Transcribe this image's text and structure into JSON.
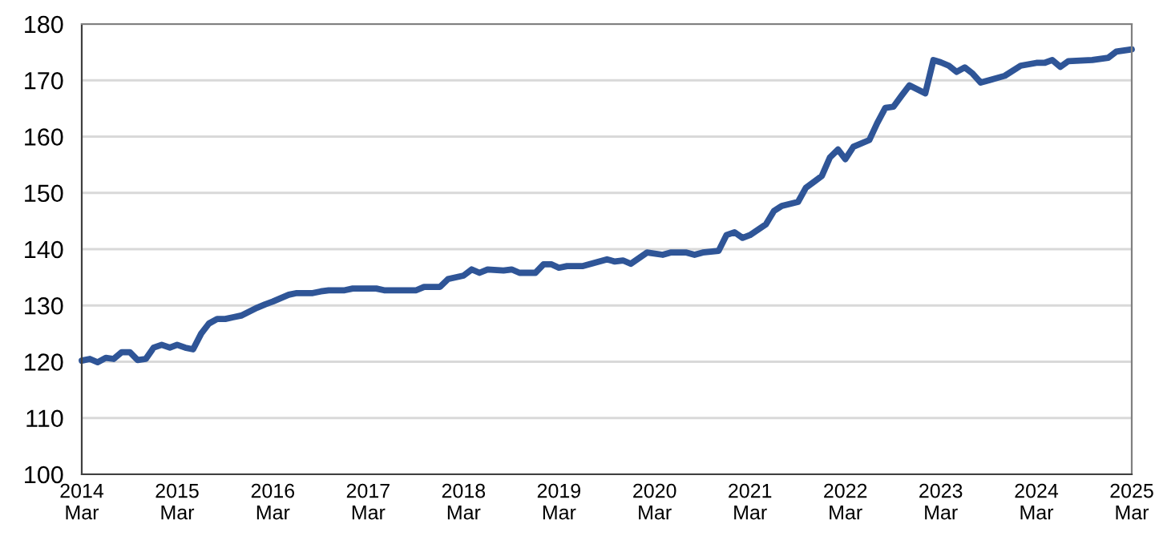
{
  "chart_data": {
    "type": "line",
    "line_style": "solid",
    "marker": "none",
    "grid": "y",
    "xlim": [
      "2014-03",
      "2025-03"
    ],
    "ylim": [
      100,
      180
    ],
    "yticks": [
      100,
      110,
      120,
      130,
      140,
      150,
      160,
      170,
      180
    ],
    "xticks": [
      {
        "value": "2014-03",
        "label": "2014\nMar"
      },
      {
        "value": "2015-03",
        "label": "2015\nMar"
      },
      {
        "value": "2016-03",
        "label": "2016\nMar"
      },
      {
        "value": "2017-03",
        "label": "2017\nMar"
      },
      {
        "value": "2018-03",
        "label": "2018\nMar"
      },
      {
        "value": "2019-03",
        "label": "2019\nMar"
      },
      {
        "value": "2020-03",
        "label": "2020\nMar"
      },
      {
        "value": "2021-03",
        "label": "2021\nMar"
      },
      {
        "value": "2022-03",
        "label": "2022\nMar"
      },
      {
        "value": "2023-03",
        "label": "2023\nMar"
      },
      {
        "value": "2024-03",
        "label": "2024\nMar"
      },
      {
        "value": "2025-03",
        "label": "2025\nMar"
      }
    ],
    "x": [
      "2014-03",
      "2014-04",
      "2014-05",
      "2014-06",
      "2014-07",
      "2014-08",
      "2014-09",
      "2014-10",
      "2014-11",
      "2014-12",
      "2015-01",
      "2015-02",
      "2015-03",
      "2015-04",
      "2015-05",
      "2015-06",
      "2015-07",
      "2015-08",
      "2015-09",
      "2015-10",
      "2015-11",
      "2016-01",
      "2016-02",
      "2016-03",
      "2016-05",
      "2016-06",
      "2016-08",
      "2016-09",
      "2016-10",
      "2016-12",
      "2017-01",
      "2017-04",
      "2017-05",
      "2017-09",
      "2017-10",
      "2017-12",
      "2018-01",
      "2018-03",
      "2018-04",
      "2018-05",
      "2018-06",
      "2018-08",
      "2018-09",
      "2018-10",
      "2018-12",
      "2019-01",
      "2019-02",
      "2019-03",
      "2019-04",
      "2019-06",
      "2019-09",
      "2019-10",
      "2019-11",
      "2019-12",
      "2020-02",
      "2020-04",
      "2020-05",
      "2020-07",
      "2020-08",
      "2020-09",
      "2020-11",
      "2020-12",
      "2021-01",
      "2021-02",
      "2021-03",
      "2021-05",
      "2021-06",
      "2021-07",
      "2021-09",
      "2021-10",
      "2021-12",
      "2022-01",
      "2022-02",
      "2022-03",
      "2022-04",
      "2022-06",
      "2022-07",
      "2022-08",
      "2022-09",
      "2022-10",
      "2022-11",
      "2023-01",
      "2023-02",
      "2023-03",
      "2023-04",
      "2023-05",
      "2023-06",
      "2023-07",
      "2023-08",
      "2023-09",
      "2023-11",
      "2024-01",
      "2024-03",
      "2024-04",
      "2024-05",
      "2024-06",
      "2024-07",
      "2024-10",
      "2024-12",
      "2025-01",
      "2025-03"
    ],
    "series": [
      {
        "color": "#2f5597",
        "values": [
          120.2,
          120.5,
          119.9,
          120.7,
          120.5,
          121.7,
          121.7,
          120.3,
          120.5,
          122.5,
          123.0,
          122.5,
          123.0,
          122.5,
          122.2,
          125.0,
          126.8,
          127.6,
          127.6,
          127.9,
          128.2,
          129.6,
          130.2,
          130.7,
          131.9,
          132.2,
          132.2,
          132.5,
          132.7,
          132.7,
          133.0,
          133.0,
          132.7,
          132.7,
          133.3,
          133.3,
          134.7,
          135.3,
          136.4,
          135.8,
          136.4,
          136.2,
          136.4,
          135.8,
          135.8,
          137.3,
          137.3,
          136.7,
          137.0,
          137.0,
          138.2,
          137.8,
          138.0,
          137.4,
          139.4,
          139.0,
          139.4,
          139.4,
          139.0,
          139.4,
          139.7,
          142.5,
          143.0,
          142.0,
          142.5,
          144.4,
          146.8,
          147.7,
          148.4,
          150.9,
          153.0,
          156.3,
          157.7,
          156.0,
          158.2,
          159.4,
          162.4,
          165.1,
          165.3,
          167.2,
          169.1,
          167.7,
          173.6,
          173.2,
          172.6,
          171.5,
          172.3,
          171.2,
          169.6,
          170.0,
          170.8,
          172.6,
          173.1,
          173.1,
          173.6,
          172.4,
          173.4,
          173.6,
          174.0,
          175.1,
          175.5
        ]
      }
    ]
  }
}
